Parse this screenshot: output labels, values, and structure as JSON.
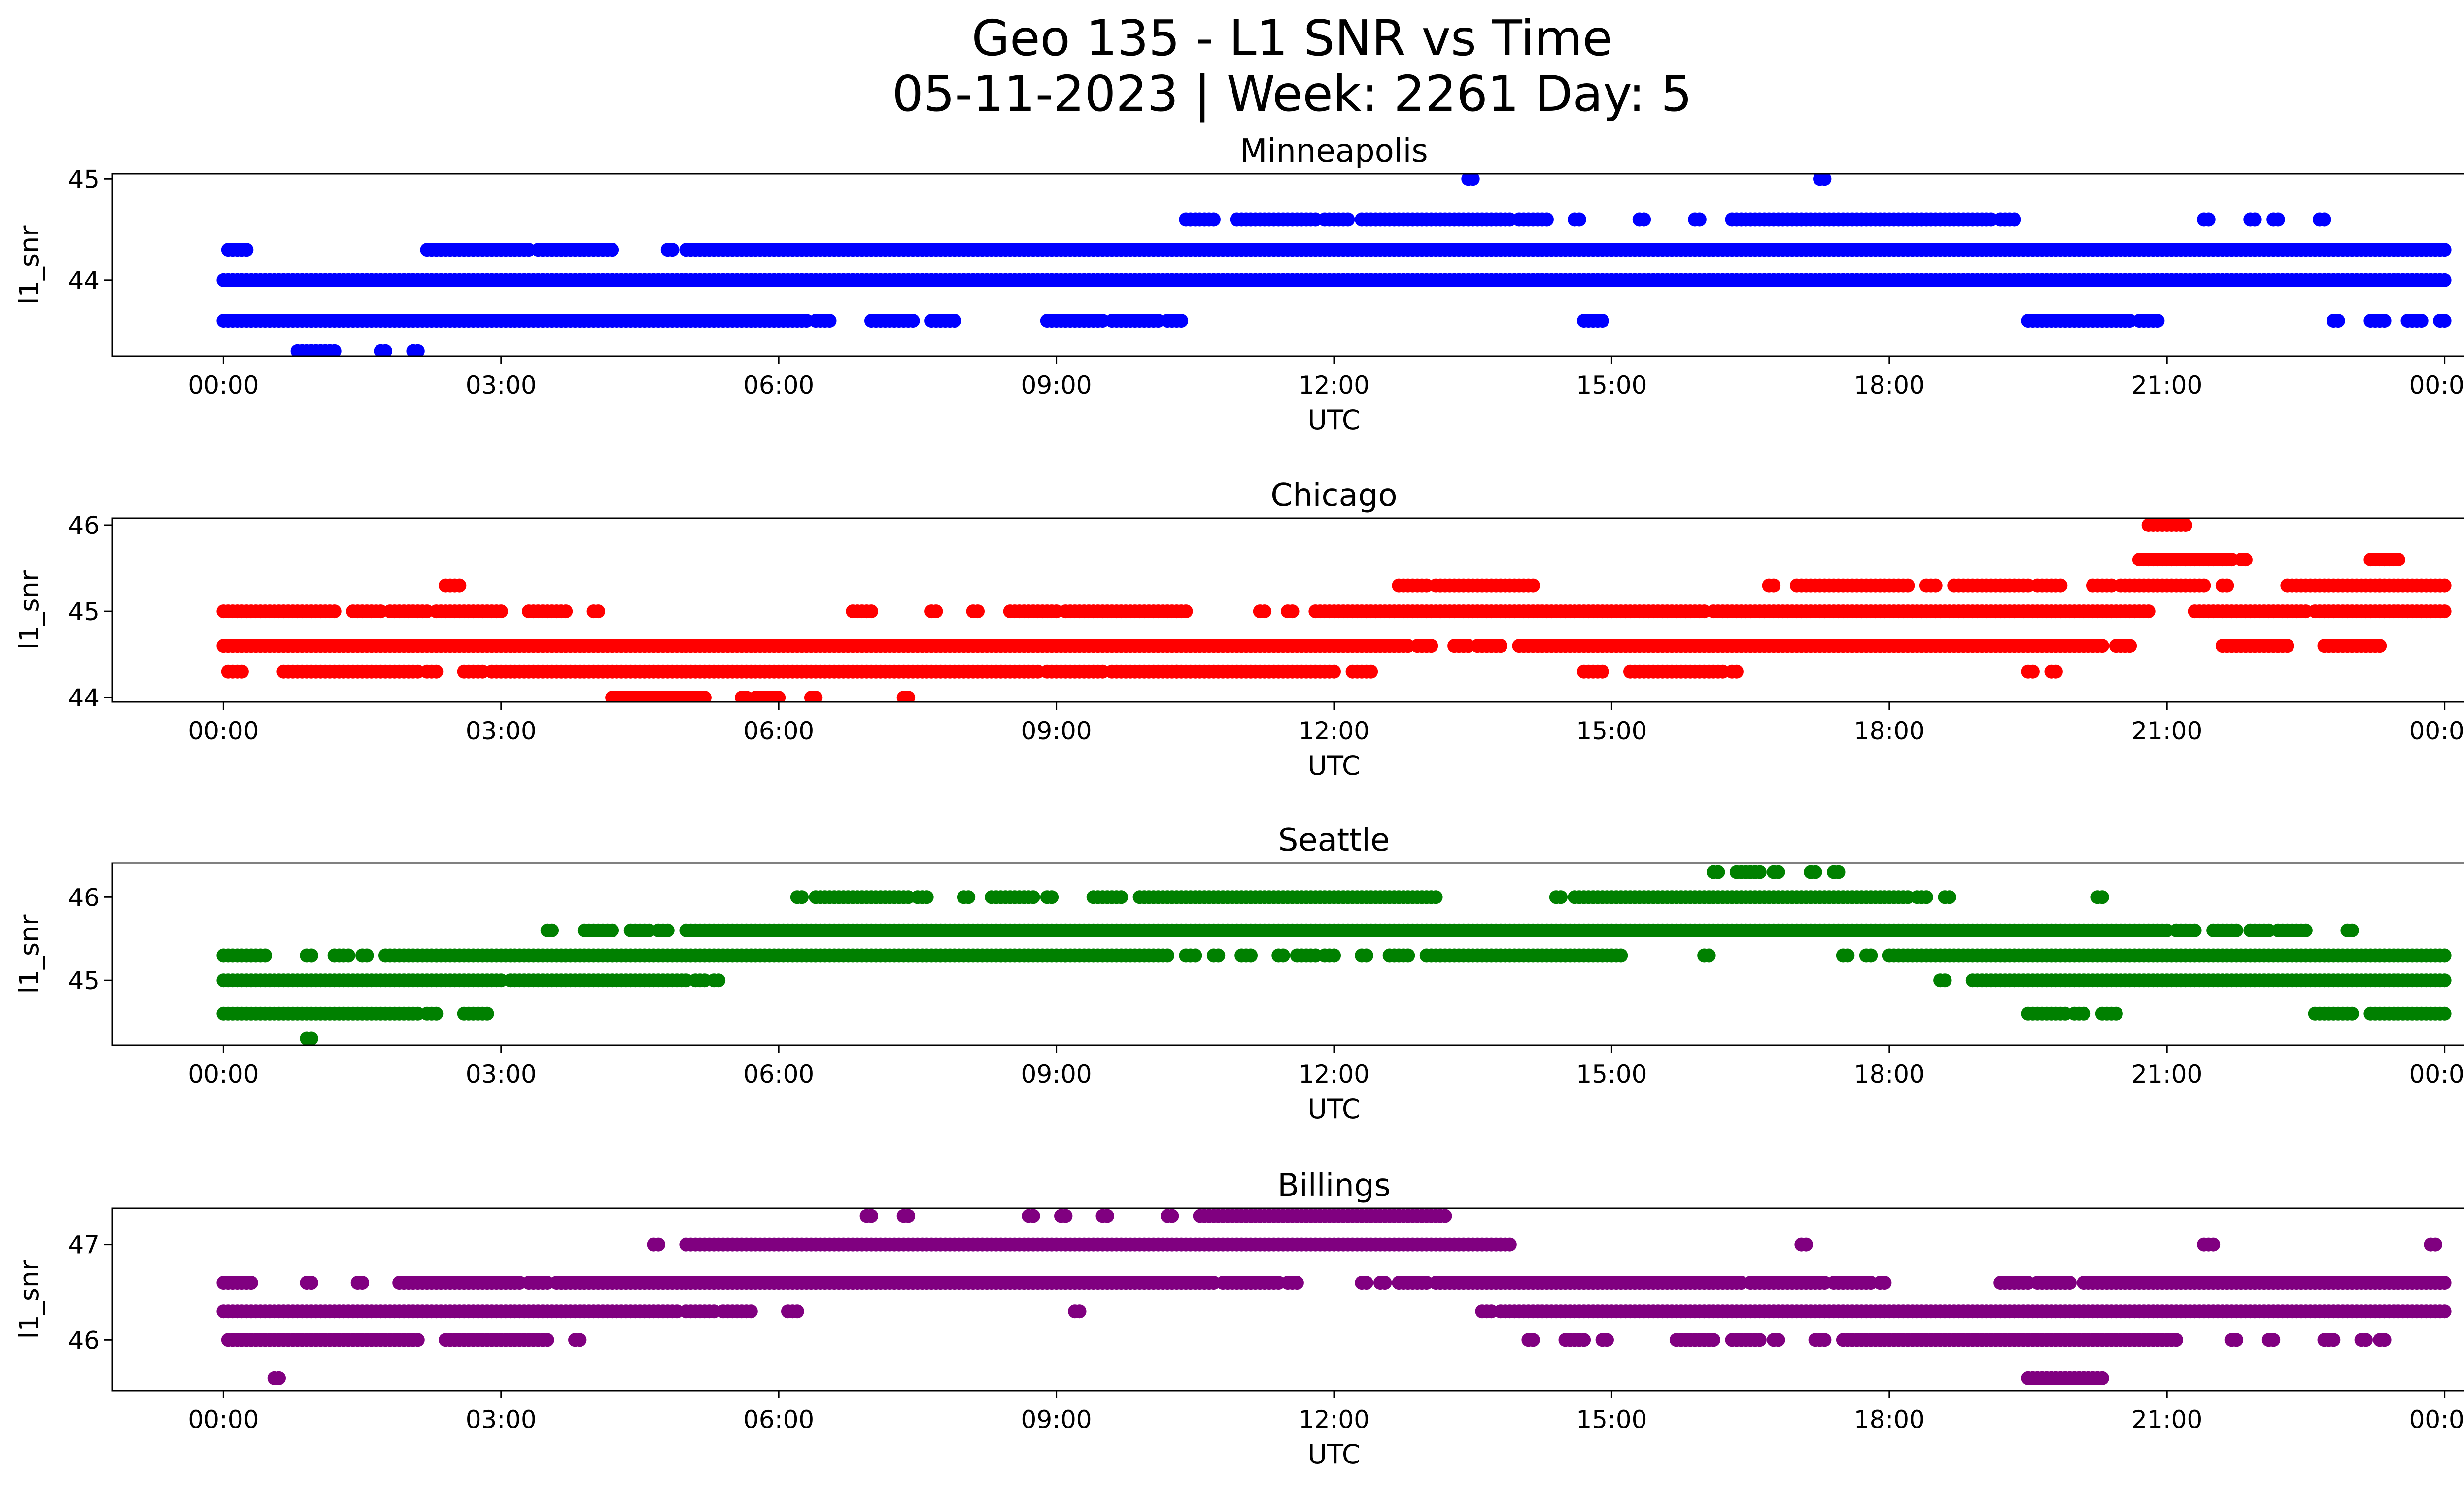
{
  "figure": {
    "title_line1": "Geo 135 - L1 SNR vs Time",
    "title_line2": "05-11-2023 | Week: 2261 Day: 5"
  },
  "chart_data": [
    {
      "type": "scatter",
      "title": "Minneapolis",
      "xlabel": "UTC",
      "ylabel": "l1_snr",
      "color": "#0000ff",
      "xlim_hours": [
        -1.2,
        25.2
      ],
      "ylim": [
        43.25,
        45.05
      ],
      "yticks": [
        44,
        45
      ],
      "xtick_labels": [
        "00:00",
        "03:00",
        "06:00",
        "09:00",
        "12:00",
        "15:00",
        "18:00",
        "21:00",
        "00:00"
      ],
      "bands": [
        {
          "y": 44.0,
          "segments": [
            [
              0.0,
              24.0
            ]
          ]
        },
        {
          "y": 44.3,
          "segments": [
            [
              0.05,
              0.25
            ],
            [
              2.2,
              3.3
            ],
            [
              3.4,
              4.2
            ],
            [
              4.8,
              4.85
            ],
            [
              5.0,
              6.0
            ],
            [
              6.05,
              24.0
            ]
          ]
        },
        {
          "y": 43.6,
          "segments": [
            [
              0.0,
              3.0
            ],
            [
              3.05,
              6.3
            ],
            [
              6.4,
              6.55
            ],
            [
              7.0,
              7.3
            ],
            [
              7.35,
              7.45
            ],
            [
              7.65,
              7.9
            ],
            [
              8.9,
              9.5
            ],
            [
              9.6,
              10.1
            ],
            [
              10.2,
              10.35
            ],
            [
              14.7,
              14.9
            ],
            [
              19.5,
              20.6
            ],
            [
              20.7,
              20.9
            ],
            [
              22.8,
              22.85
            ],
            [
              23.2,
              23.35
            ],
            [
              23.6,
              23.75
            ],
            [
              23.95,
              24.0
            ]
          ]
        },
        {
          "y": 44.6,
          "segments": [
            [
              10.4,
              10.7
            ],
            [
              10.95,
              11.8
            ],
            [
              11.9,
              12.15
            ],
            [
              12.3,
              13.9
            ],
            [
              14.0,
              14.3
            ],
            [
              14.6,
              14.65
            ],
            [
              15.3,
              15.35
            ],
            [
              15.9,
              15.95
            ],
            [
              16.3,
              19.1
            ],
            [
              19.2,
              19.35
            ],
            [
              21.4,
              21.45
            ],
            [
              21.9,
              21.95
            ],
            [
              22.15,
              22.2
            ],
            [
              22.65,
              22.7
            ]
          ]
        },
        {
          "y": 43.3,
          "segments": [
            [
              0.8,
              1.2
            ],
            [
              1.7,
              1.75
            ],
            [
              2.05,
              2.1
            ]
          ]
        },
        {
          "y": 45.0,
          "segments": [
            [
              13.45,
              13.5
            ],
            [
              17.25,
              17.3
            ]
          ]
        }
      ]
    },
    {
      "type": "scatter",
      "title": "Chicago",
      "xlabel": "UTC",
      "ylabel": "l1_snr",
      "color": "#ff0000",
      "xlim_hours": [
        -1.2,
        25.2
      ],
      "ylim": [
        43.95,
        46.08
      ],
      "yticks": [
        44,
        45,
        46
      ],
      "xtick_labels": [
        "00:00",
        "03:00",
        "06:00",
        "09:00",
        "12:00",
        "15:00",
        "18:00",
        "21:00",
        "00:00"
      ],
      "bands": [
        {
          "y": 44.6,
          "segments": [
            [
              0.0,
              12.8
            ],
            [
              12.9,
              13.05
            ],
            [
              13.3,
              13.45
            ],
            [
              13.55,
              13.8
            ],
            [
              14.0,
              20.3
            ],
            [
              20.45,
              20.6
            ],
            [
              21.6,
              22.2
            ],
            [
              22.2,
              22.3
            ],
            [
              22.7,
              23.3
            ]
          ]
        },
        {
          "y": 45.0,
          "segments": [
            [
              0.0,
              1.2
            ],
            [
              1.4,
              1.7
            ],
            [
              1.8,
              1.95
            ],
            [
              2.0,
              2.2
            ],
            [
              2.3,
              3.0
            ],
            [
              3.3,
              3.7
            ],
            [
              4.0,
              4.05
            ],
            [
              6.8,
              7.0
            ],
            [
              7.65,
              7.7
            ],
            [
              8.1,
              8.15
            ],
            [
              8.5,
              9.0
            ],
            [
              9.1,
              10.4
            ],
            [
              11.2,
              11.25
            ],
            [
              11.5,
              11.55
            ],
            [
              11.8,
              16.0
            ],
            [
              16.1,
              20.8
            ],
            [
              21.3,
              22.5
            ],
            [
              22.6,
              24.0
            ]
          ]
        },
        {
          "y": 44.3,
          "segments": [
            [
              0.05,
              0.2
            ],
            [
              0.65,
              0.75
            ],
            [
              0.8,
              2.1
            ],
            [
              2.2,
              2.3
            ],
            [
              2.6,
              2.8
            ],
            [
              2.9,
              8.8
            ],
            [
              8.9,
              9.5
            ],
            [
              9.6,
              10.3
            ],
            [
              10.3,
              12.0
            ],
            [
              12.2,
              12.4
            ],
            [
              14.7,
              14.9
            ],
            [
              15.2,
              16.0
            ],
            [
              16.05,
              16.2
            ],
            [
              16.3,
              16.35
            ],
            [
              19.5,
              19.55
            ],
            [
              19.75,
              19.8
            ]
          ]
        },
        {
          "y": 45.3,
          "segments": [
            [
              2.4,
              2.55
            ],
            [
              12.7,
              13.0
            ],
            [
              13.1,
              14.0
            ],
            [
              14.05,
              14.15
            ],
            [
              16.7,
              16.75
            ],
            [
              17.0,
              18.2
            ],
            [
              18.4,
              18.5
            ],
            [
              18.7,
              19.5
            ],
            [
              19.6,
              19.7
            ],
            [
              19.75,
              19.85
            ],
            [
              20.2,
              20.4
            ],
            [
              20.5,
              21.4
            ],
            [
              21.6,
              21.65
            ],
            [
              22.3,
              23.3
            ],
            [
              23.3,
              24.0
            ]
          ]
        },
        {
          "y": 45.6,
          "segments": [
            [
              20.7,
              21.7
            ],
            [
              21.8,
              21.85
            ],
            [
              23.2,
              23.5
            ]
          ]
        },
        {
          "y": 46.0,
          "segments": [
            [
              20.8,
              21.2
            ]
          ]
        },
        {
          "y": 44.0,
          "segments": [
            [
              4.2,
              5.2
            ],
            [
              5.6,
              5.65
            ],
            [
              5.75,
              6.0
            ],
            [
              6.35,
              6.4
            ],
            [
              7.35,
              7.4
            ]
          ]
        }
      ]
    },
    {
      "type": "scatter",
      "title": "Seattle",
      "xlabel": "UTC",
      "ylabel": "l1_snr",
      "color": "#008000",
      "xlim_hours": [
        -1.2,
        25.2
      ],
      "ylim": [
        44.22,
        46.41
      ],
      "yticks": [
        45,
        46
      ],
      "xtick_labels": [
        "00:00",
        "03:00",
        "06:00",
        "09:00",
        "12:00",
        "15:00",
        "18:00",
        "21:00",
        "00:00"
      ],
      "bands": [
        {
          "y": 45.0,
          "segments": [
            [
              0.0,
              3.0
            ],
            [
              3.1,
              5.0
            ],
            [
              5.1,
              5.2
            ],
            [
              5.3,
              5.35
            ],
            [
              18.55,
              18.6
            ],
            [
              18.9,
              24.0
            ]
          ]
        },
        {
          "y": 44.6,
          "segments": [
            [
              0.0,
              2.1
            ],
            [
              2.2,
              2.3
            ],
            [
              2.6,
              2.85
            ],
            [
              19.5,
              19.9
            ],
            [
              20.0,
              20.1
            ],
            [
              20.3,
              20.45
            ],
            [
              22.6,
              23.0
            ],
            [
              23.2,
              24.0
            ]
          ]
        },
        {
          "y": 45.3,
          "segments": [
            [
              0.0,
              0.45
            ],
            [
              0.9,
              0.95
            ],
            [
              1.2,
              1.35
            ],
            [
              1.5,
              1.55
            ],
            [
              1.75,
              10.2
            ],
            [
              10.4,
              10.5
            ],
            [
              10.7,
              10.75
            ],
            [
              11.0,
              11.1
            ],
            [
              11.4,
              11.45
            ],
            [
              11.6,
              11.8
            ],
            [
              11.9,
              12.0
            ],
            [
              12.3,
              12.35
            ],
            [
              12.6,
              12.8
            ],
            [
              13.0,
              15.1
            ],
            [
              16.0,
              16.05
            ],
            [
              17.5,
              17.55
            ],
            [
              17.75,
              17.8
            ],
            [
              18.0,
              24.0
            ]
          ]
        },
        {
          "y": 45.6,
          "segments": [
            [
              3.5,
              3.55
            ],
            [
              3.9,
              4.2
            ],
            [
              4.4,
              4.6
            ],
            [
              4.7,
              4.8
            ],
            [
              5.0,
              21.0
            ],
            [
              21.1,
              21.3
            ],
            [
              21.5,
              21.75
            ],
            [
              21.9,
              22.1
            ],
            [
              22.2,
              22.5
            ],
            [
              22.95,
              23.0
            ]
          ]
        },
        {
          "y": 46.0,
          "segments": [
            [
              6.2,
              6.25
            ],
            [
              6.4,
              7.4
            ],
            [
              7.5,
              7.6
            ],
            [
              8.0,
              8.05
            ],
            [
              8.3,
              8.75
            ],
            [
              8.9,
              8.95
            ],
            [
              9.4,
              9.7
            ],
            [
              9.9,
              13.1
            ],
            [
              14.4,
              14.45
            ],
            [
              14.6,
              18.2
            ],
            [
              18.3,
              18.4
            ],
            [
              18.6,
              18.65
            ],
            [
              20.25,
              20.3
            ]
          ]
        },
        {
          "y": 46.3,
          "segments": [
            [
              16.1,
              16.15
            ],
            [
              16.35,
              16.6
            ],
            [
              16.75,
              16.8
            ],
            [
              17.15,
              17.2
            ],
            [
              17.4,
              17.45
            ]
          ]
        },
        {
          "y": 44.3,
          "segments": [
            [
              0.9,
              0.95
            ]
          ]
        }
      ]
    },
    {
      "type": "scatter",
      "title": "Billings",
      "xlabel": "UTC",
      "ylabel": "l1_snr",
      "color": "#800080",
      "xlim_hours": [
        -1.2,
        25.2
      ],
      "ylim": [
        45.47,
        47.38
      ],
      "yticks": [
        46,
        47
      ],
      "xtick_labels": [
        "00:00",
        "03:00",
        "06:00",
        "09:00",
        "12:00",
        "15:00",
        "18:00",
        "21:00",
        "00:00"
      ],
      "bands": [
        {
          "y": 46.3,
          "segments": [
            [
              0.0,
              4.9
            ],
            [
              5.0,
              5.3
            ],
            [
              5.4,
              5.7
            ],
            [
              6.1,
              6.2
            ],
            [
              9.2,
              9.25
            ],
            [
              13.6,
              13.7
            ],
            [
              13.8,
              24.0
            ]
          ]
        },
        {
          "y": 46.0,
          "segments": [
            [
              0.05,
              2.1
            ],
            [
              2.4,
              3.5
            ],
            [
              3.8,
              3.85
            ],
            [
              14.1,
              14.15
            ],
            [
              14.5,
              14.7
            ],
            [
              14.9,
              14.95
            ],
            [
              15.7,
              16.1
            ],
            [
              16.3,
              16.6
            ],
            [
              16.75,
              16.8
            ],
            [
              17.2,
              17.3
            ],
            [
              17.5,
              21.1
            ],
            [
              21.7,
              21.75
            ],
            [
              22.1,
              22.15
            ],
            [
              22.7,
              22.8
            ],
            [
              23.1,
              23.15
            ],
            [
              23.3,
              23.35
            ]
          ]
        },
        {
          "y": 46.6,
          "segments": [
            [
              0.0,
              0.3
            ],
            [
              0.9,
              0.95
            ],
            [
              1.45,
              1.5
            ],
            [
              1.9,
              3.2
            ],
            [
              3.3,
              3.5
            ],
            [
              3.6,
              10.7
            ],
            [
              10.8,
              11.4
            ],
            [
              11.5,
              11.6
            ],
            [
              12.3,
              12.35
            ],
            [
              12.5,
              12.55
            ],
            [
              12.7,
              13.0
            ],
            [
              13.1,
              16.4
            ],
            [
              16.5,
              17.3
            ],
            [
              17.4,
              17.8
            ],
            [
              17.9,
              17.95
            ],
            [
              19.2,
              19.5
            ],
            [
              19.6,
              19.95
            ],
            [
              20.1,
              24.0
            ]
          ]
        },
        {
          "y": 47.0,
          "segments": [
            [
              4.65,
              4.7
            ],
            [
              5.0,
              13.9
            ],
            [
              17.05,
              17.1
            ],
            [
              21.4,
              21.5
            ],
            [
              23.85,
              23.9
            ]
          ]
        },
        {
          "y": 47.3,
          "segments": [
            [
              6.95,
              7.0
            ],
            [
              7.35,
              7.4
            ],
            [
              8.7,
              8.75
            ],
            [
              9.05,
              9.1
            ],
            [
              9.5,
              9.55
            ],
            [
              10.2,
              10.25
            ],
            [
              10.55,
              13.2
            ]
          ]
        },
        {
          "y": 45.6,
          "segments": [
            [
              0.55,
              0.6
            ],
            [
              19.5,
              20.3
            ]
          ]
        }
      ]
    }
  ]
}
